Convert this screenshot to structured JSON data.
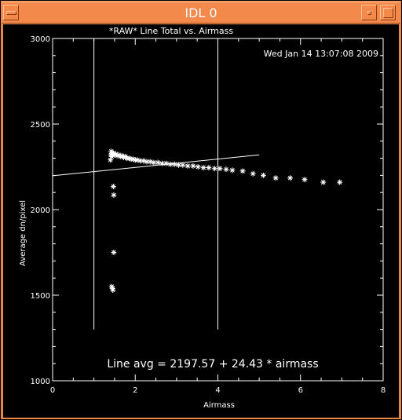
{
  "window": {
    "title": "IDL 0",
    "icons": {
      "menu": "window-menu-icon",
      "minimize": "minimize-icon",
      "maximize": "maximize-icon"
    }
  },
  "colors": {
    "background": "#000000",
    "foreground": "#ffffff",
    "titlebar": "#f4894c"
  },
  "chart_data": {
    "type": "scatter",
    "title": "*RAW* Line Total vs. Airmass",
    "timestamp": "Wed Jan 14 13:07:08 2009",
    "xlabel": "Airmass",
    "ylabel": "Average dn/pixel",
    "xlim": [
      0,
      8
    ],
    "ylim": [
      1000,
      3000
    ],
    "xticks": [
      0,
      2,
      4,
      6,
      8
    ],
    "yticks": [
      1000,
      1500,
      2000,
      2500,
      3000
    ],
    "marker": "*",
    "grid": false,
    "fit": {
      "intercept": 2197.57,
      "slope": 24.43,
      "x_range": [
        0,
        5
      ]
    },
    "fit_label": "Line avg = 2197.57 + 24.43 * airmass",
    "vlines": [
      {
        "x": 1.0,
        "y_range": [
          1300,
          3000
        ]
      },
      {
        "x": 4.0,
        "y_range": [
          1300,
          3000
        ]
      }
    ],
    "points": [
      [
        1.4,
        2290
      ],
      [
        1.41,
        2320
      ],
      [
        1.42,
        2340
      ],
      [
        1.43,
        2310
      ],
      [
        1.44,
        2330
      ],
      [
        1.45,
        2320
      ],
      [
        1.47,
        2330
      ],
      [
        1.5,
        2320
      ],
      [
        1.53,
        2325
      ],
      [
        1.56,
        2315
      ],
      [
        1.6,
        2320
      ],
      [
        1.64,
        2310
      ],
      [
        1.68,
        2315
      ],
      [
        1.72,
        2305
      ],
      [
        1.76,
        2310
      ],
      [
        1.8,
        2300
      ],
      [
        1.85,
        2300
      ],
      [
        1.9,
        2295
      ],
      [
        1.95,
        2295
      ],
      [
        2.0,
        2290
      ],
      [
        2.05,
        2290
      ],
      [
        2.12,
        2285
      ],
      [
        2.2,
        2285
      ],
      [
        2.28,
        2280
      ],
      [
        2.36,
        2280
      ],
      [
        2.45,
        2275
      ],
      [
        2.55,
        2275
      ],
      [
        2.65,
        2270
      ],
      [
        2.75,
        2270
      ],
      [
        2.85,
        2265
      ],
      [
        2.95,
        2265
      ],
      [
        3.05,
        2260
      ],
      [
        3.15,
        2260
      ],
      [
        3.27,
        2255
      ],
      [
        3.4,
        2255
      ],
      [
        3.52,
        2250
      ],
      [
        3.65,
        2245
      ],
      [
        3.78,
        2245
      ],
      [
        3.92,
        2240
      ],
      [
        4.05,
        2240
      ],
      [
        4.2,
        2235
      ],
      [
        4.35,
        2230
      ],
      [
        4.6,
        2225
      ],
      [
        4.85,
        2210
      ],
      [
        5.1,
        2200
      ],
      [
        5.4,
        2185
      ],
      [
        5.75,
        2185
      ],
      [
        6.1,
        2175
      ],
      [
        6.55,
        2160
      ],
      [
        6.95,
        2160
      ],
      [
        1.47,
        2135
      ],
      [
        1.48,
        2085
      ],
      [
        1.48,
        1750
      ],
      [
        1.43,
        1550
      ],
      [
        1.45,
        1540
      ],
      [
        1.46,
        1530
      ]
    ]
  }
}
